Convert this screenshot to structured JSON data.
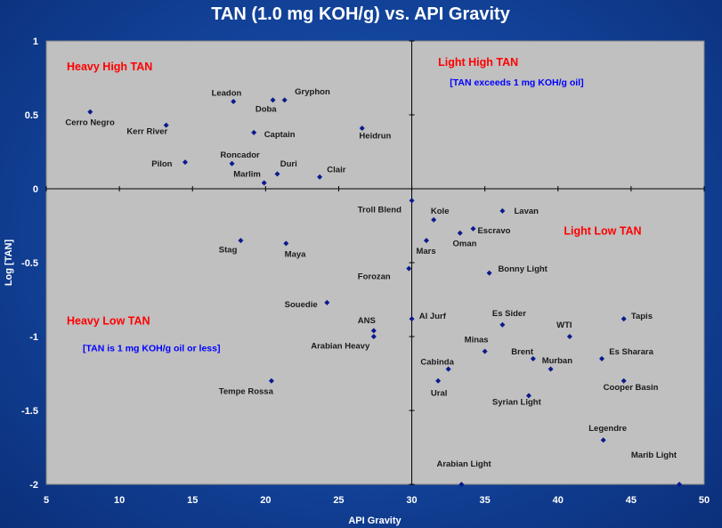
{
  "chart_data": {
    "type": "scatter",
    "title": "TAN (1.0 mg KOH/g) vs. API Gravity",
    "xlabel": "API Gravity",
    "ylabel": "Log [TAN]",
    "xlim": [
      5,
      50
    ],
    "ylim": [
      -2,
      1
    ],
    "x_ticks": [
      "5",
      "10",
      "15",
      "20",
      "25",
      "30",
      "35",
      "40",
      "45",
      "50"
    ],
    "y_ticks": [
      "1",
      "0.5",
      "0",
      "-0.5",
      "-1",
      "-1.5",
      "-2"
    ],
    "reference_lines": {
      "x": 30,
      "y": 0
    },
    "grid": false,
    "marker_color": "#0a1a8c",
    "plot_bg": "#c0c0c0",
    "quadrant_labels": [
      {
        "text": "Heavy High TAN",
        "x": 6.4,
        "y": 0.8,
        "color": "#ff0000"
      },
      {
        "text": "Light High TAN",
        "x": 31.8,
        "y": 0.83,
        "color": "#ff0000"
      },
      {
        "text": "Light Low TAN",
        "x": 40.4,
        "y": -0.31,
        "color": "#ff0000"
      },
      {
        "text": "Heavy Low TAN",
        "x": 6.4,
        "y": -0.92,
        "color": "#ff0000"
      }
    ],
    "notes": [
      {
        "text": "[TAN exceeds 1 mg KOH/g oil]",
        "x": 32.6,
        "y": 0.7,
        "color": "#0000ff"
      },
      {
        "text": "[TAN is 1 mg KOH/g oil or less]",
        "x": 7.5,
        "y": -1.1,
        "color": "#0000ff"
      }
    ],
    "points": [
      {
        "name": "Cerro Negro",
        "x": 8,
        "y": 0.52,
        "lx": 6.3,
        "ly": 0.43
      },
      {
        "name": "Kerr River",
        "x": 13.2,
        "y": 0.43,
        "lx": 10.5,
        "ly": 0.37
      },
      {
        "name": "Pilon",
        "x": 14.5,
        "y": 0.18,
        "lx": 12.2,
        "ly": 0.15
      },
      {
        "name": "Leadon",
        "x": 17.8,
        "y": 0.59,
        "lx": 16.3,
        "ly": 0.63
      },
      {
        "name": "Doba",
        "x": 20.5,
        "y": 0.6,
        "lx": 19.3,
        "ly": 0.52
      },
      {
        "name": "Gryphon",
        "x": 21.3,
        "y": 0.6,
        "lx": 22.0,
        "ly": 0.64
      },
      {
        "name": "Captain",
        "x": 19.2,
        "y": 0.38,
        "lx": 19.9,
        "ly": 0.35
      },
      {
        "name": "Roncador",
        "x": 17.7,
        "y": 0.17,
        "lx": 16.9,
        "ly": 0.21
      },
      {
        "name": "Duri",
        "x": 20.8,
        "y": 0.1,
        "lx": 21.0,
        "ly": 0.15
      },
      {
        "name": "Marlim",
        "x": 19.9,
        "y": 0.04,
        "lx": 17.8,
        "ly": 0.08
      },
      {
        "name": "Clair",
        "x": 23.7,
        "y": 0.08,
        "lx": 24.2,
        "ly": 0.11
      },
      {
        "name": "Heidrun",
        "x": 26.6,
        "y": 0.41,
        "lx": 26.4,
        "ly": 0.34
      },
      {
        "name": "Troll Blend",
        "x": 30,
        "y": -0.08,
        "lx": 26.3,
        "ly": -0.16
      },
      {
        "name": "Kole",
        "x": 31.5,
        "y": -0.21,
        "lx": 31.3,
        "ly": -0.17
      },
      {
        "name": "Lavan",
        "x": 36.2,
        "y": -0.15,
        "lx": 37.0,
        "ly": -0.17
      },
      {
        "name": "Escravo",
        "x": 34.2,
        "y": -0.27,
        "lx": 34.5,
        "ly": -0.3
      },
      {
        "name": "Oman",
        "x": 33.3,
        "y": -0.3,
        "lx": 32.8,
        "ly": -0.39
      },
      {
        "name": "Mars",
        "x": 31.0,
        "y": -0.35,
        "lx": 30.3,
        "ly": -0.44
      },
      {
        "name": "Stag",
        "x": 18.3,
        "y": -0.35,
        "lx": 16.8,
        "ly": -0.43
      },
      {
        "name": "Maya",
        "x": 21.4,
        "y": -0.37,
        "lx": 21.3,
        "ly": -0.46
      },
      {
        "name": "Bonny Light",
        "x": 35.3,
        "y": -0.57,
        "lx": 35.9,
        "ly": -0.56
      },
      {
        "name": "Forozan",
        "x": 29.8,
        "y": -0.54,
        "lx": 26.3,
        "ly": -0.61
      },
      {
        "name": "Souedie",
        "x": 24.2,
        "y": -0.77,
        "lx": 21.3,
        "ly": -0.8
      },
      {
        "name": "Al Jurf",
        "x": 30,
        "y": -0.88,
        "lx": 30.5,
        "ly": -0.88
      },
      {
        "name": "Es Sider",
        "x": 36.2,
        "y": -0.92,
        "lx": 35.5,
        "ly": -0.86
      },
      {
        "name": "Tapis",
        "x": 44.5,
        "y": -0.88,
        "lx": 45.0,
        "ly": -0.88
      },
      {
        "name": "ANS",
        "x": 27.4,
        "y": -0.96,
        "lx": 26.3,
        "ly": -0.91
      },
      {
        "name": "Arabian Heavy",
        "x": 27.4,
        "y": -1.0,
        "lx": 23.1,
        "ly": -1.08
      },
      {
        "name": "WTI",
        "x": 40.8,
        "y": -1.0,
        "lx": 39.9,
        "ly": -0.94
      },
      {
        "name": "Minas",
        "x": 35.0,
        "y": -1.1,
        "lx": 33.6,
        "ly": -1.04
      },
      {
        "name": "Brent",
        "x": 38.3,
        "y": -1.15,
        "lx": 36.8,
        "ly": -1.12
      },
      {
        "name": "Es Sharara",
        "x": 43.0,
        "y": -1.15,
        "lx": 43.5,
        "ly": -1.12
      },
      {
        "name": "Murban",
        "x": 39.5,
        "y": -1.22,
        "lx": 38.9,
        "ly": -1.18
      },
      {
        "name": "Cabinda",
        "x": 32.5,
        "y": -1.22,
        "lx": 30.6,
        "ly": -1.19
      },
      {
        "name": "Ural",
        "x": 31.8,
        "y": -1.3,
        "lx": 31.3,
        "ly": -1.4
      },
      {
        "name": "Tempe Rossa",
        "x": 20.4,
        "y": -1.3,
        "lx": 16.8,
        "ly": -1.39
      },
      {
        "name": "Cooper Basin",
        "x": 44.5,
        "y": -1.3,
        "lx": 43.1,
        "ly": -1.36
      },
      {
        "name": "Syrian Light",
        "x": 38.0,
        "y": -1.4,
        "lx": 35.5,
        "ly": -1.46
      },
      {
        "name": "Legendre",
        "x": 43.1,
        "y": -1.7,
        "lx": 42.1,
        "ly": -1.64
      },
      {
        "name": "Marib Light",
        "x": 48.3,
        "y": -2.0,
        "lx": 45.0,
        "ly": -1.82
      },
      {
        "name": "Arabian Light",
        "x": 33.4,
        "y": -2.0,
        "lx": 31.7,
        "ly": -1.88
      }
    ]
  }
}
